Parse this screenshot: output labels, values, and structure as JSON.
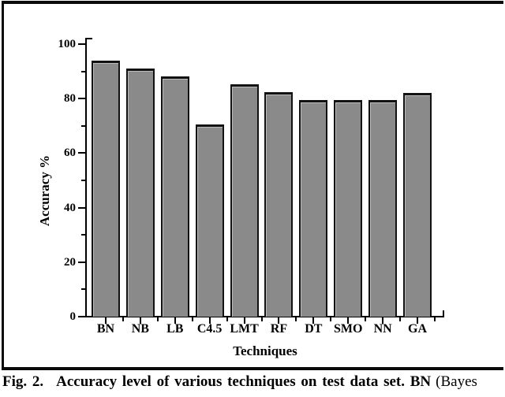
{
  "figure": {
    "caption_prefix": "Fig. 2.",
    "caption_bold": "Accuracy level of various techniques on test data set. BN",
    "caption_regular": "(Bayes"
  },
  "chart_data": {
    "type": "bar",
    "categories": [
      "BN",
      "NB",
      "LB",
      "C4.5",
      "LMT",
      "RF",
      "DT",
      "SMO",
      "NN",
      "GA"
    ],
    "values": [
      94.0,
      91.0,
      88.2,
      70.5,
      85.3,
      82.4,
      79.4,
      79.4,
      79.4,
      82.1
    ],
    "xlabel": "Techniques",
    "ylabel": "Accuracy %",
    "ylim": [
      0,
      100
    ],
    "ytick_major": [
      0,
      20,
      40,
      60,
      80,
      100
    ],
    "ytick_minor": [
      10,
      30,
      50,
      70,
      90
    ],
    "grid": false,
    "legend_position": "none",
    "bar_fill": "#8a8a8a",
    "bar_edge": "#121212",
    "axis_color": "#000000"
  }
}
